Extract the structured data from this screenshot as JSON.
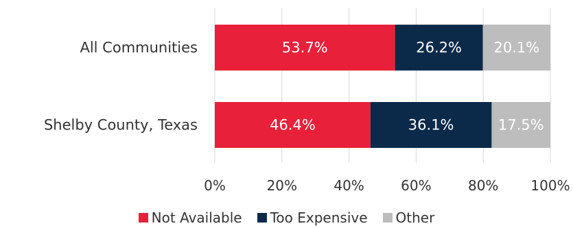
{
  "chart_data": {
    "type": "bar",
    "orientation": "horizontal",
    "stacked": true,
    "categories": [
      "All Communities",
      "Shelby County, Texas"
    ],
    "series": [
      {
        "name": "Not Available",
        "values": [
          53.7,
          46.4
        ],
        "labels": [
          "53.7%",
          "46.4%"
        ],
        "color": "#e8203a",
        "label_color": "#ffffff"
      },
      {
        "name": "Too Expensive",
        "values": [
          26.2,
          36.1
        ],
        "labels": [
          "26.2%",
          "36.1%"
        ],
        "color": "#0b2a4a",
        "label_color": "#ffffff"
      },
      {
        "name": "Other",
        "values": [
          20.1,
          17.5
        ],
        "labels": [
          "20.1%",
          "17.5%"
        ],
        "color": "#bdbdbd",
        "label_color": "#ffffff"
      }
    ],
    "xlim": [
      0,
      100
    ],
    "xticks": [
      0,
      20,
      40,
      60,
      80,
      100
    ],
    "xtick_labels": [
      "0%",
      "20%",
      "40%",
      "60%",
      "80%",
      "100%"
    ],
    "grid": true,
    "legend_position": "bottom"
  }
}
